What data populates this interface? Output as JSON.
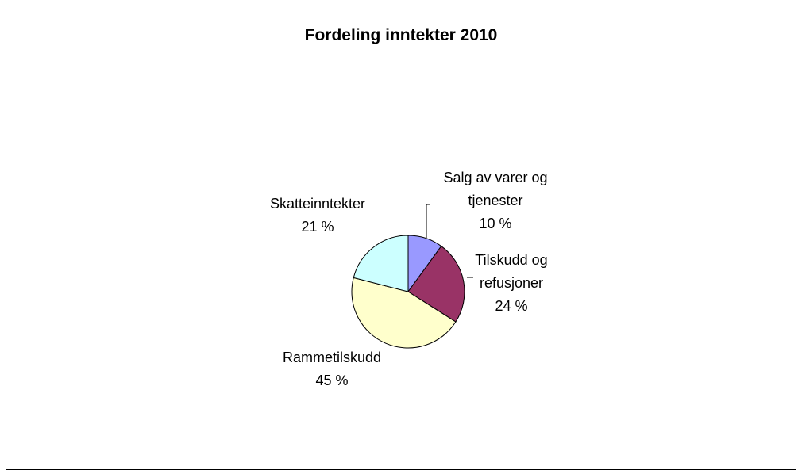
{
  "chart_data": {
    "type": "pie",
    "title": "Fordeling inntekter 2010",
    "slices": [
      {
        "name_lines": [
          "Salg av varer og",
          "tjenester"
        ],
        "percent_label": "10 %",
        "value": 10,
        "color": "#9999ff"
      },
      {
        "name_lines": [
          "Tilskudd og",
          "refusjoner"
        ],
        "percent_label": "24 %",
        "value": 24,
        "color": "#993366"
      },
      {
        "name_lines": [
          "Rammetilskudd"
        ],
        "percent_label": "45 %",
        "value": 45,
        "color": "#ffffcc"
      },
      {
        "name_lines": [
          "Skatteinntekter"
        ],
        "percent_label": "21 %",
        "value": 21,
        "color": "#ccffff"
      }
    ],
    "start_angle_deg": 0,
    "direction": "clockwise",
    "legend": "none",
    "labels_outside": true
  }
}
